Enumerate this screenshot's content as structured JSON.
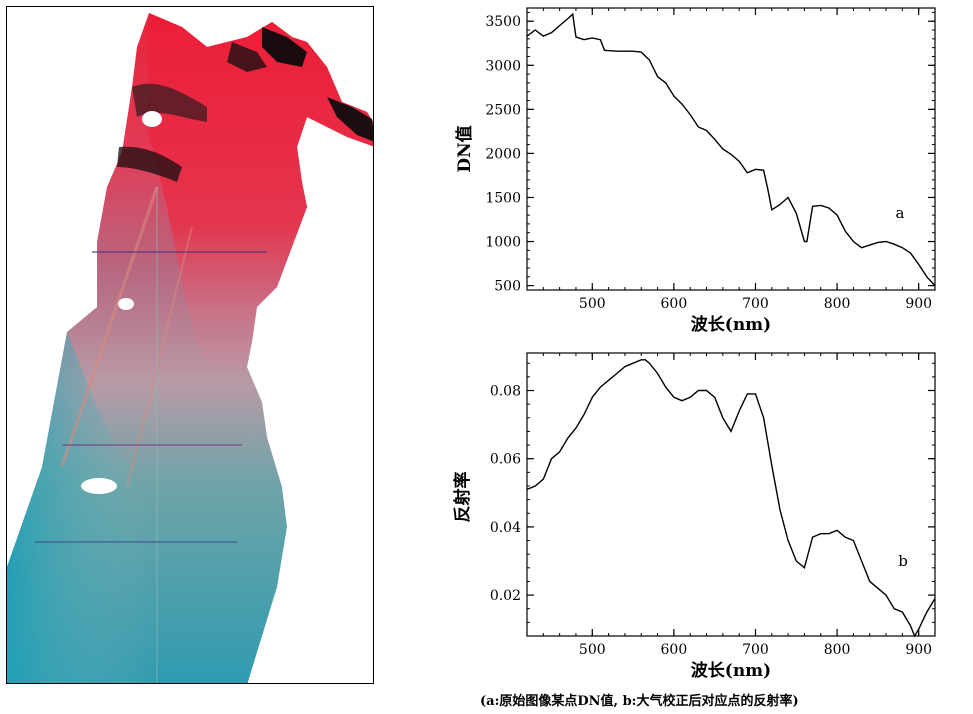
{
  "caption": "(a:原始图像某点DN值, b:大气校正后对应点的反射率)",
  "colors": {
    "axis": "#000000",
    "line": "#000000"
  },
  "chart_data": [
    {
      "type": "line",
      "panel_label": "a",
      "xlabel": "波长(nm)",
      "ylabel": "DN值",
      "xlim": [
        420,
        920
      ],
      "ylim": [
        450,
        3650
      ],
      "xticks": [
        500,
        600,
        700,
        800,
        900
      ],
      "yticks": [
        500,
        1000,
        1500,
        2000,
        2500,
        3000,
        3500
      ],
      "grid": false,
      "x": [
        420,
        430,
        440,
        450,
        460,
        470,
        476,
        480,
        490,
        500,
        510,
        515,
        530,
        550,
        560,
        570,
        580,
        590,
        600,
        610,
        620,
        630,
        640,
        650,
        660,
        670,
        680,
        690,
        700,
        710,
        715,
        720,
        730,
        740,
        750,
        760,
        763,
        770,
        780,
        790,
        800,
        810,
        820,
        830,
        840,
        850,
        860,
        870,
        880,
        890,
        900,
        910,
        920
      ],
      "y": [
        3330,
        3400,
        3330,
        3370,
        3450,
        3530,
        3580,
        3320,
        3290,
        3310,
        3290,
        3170,
        3160,
        3160,
        3150,
        3060,
        2870,
        2800,
        2650,
        2560,
        2440,
        2300,
        2260,
        2160,
        2050,
        1990,
        1910,
        1780,
        1820,
        1810,
        1600,
        1360,
        1420,
        1500,
        1320,
        1000,
        1000,
        1400,
        1410,
        1380,
        1300,
        1120,
        1000,
        930,
        960,
        990,
        1000,
        970,
        930,
        870,
        740,
        600,
        500
      ]
    },
    {
      "type": "line",
      "panel_label": "b",
      "xlabel": "波长(nm)",
      "ylabel": "反射率",
      "xlim": [
        420,
        920
      ],
      "ylim": [
        0.008,
        0.091
      ],
      "xticks": [
        500,
        600,
        700,
        800,
        900
      ],
      "yticks": [
        0.02,
        0.04,
        0.06,
        0.08
      ],
      "ytick_labels": [
        "0.02",
        "0.04",
        "0.06",
        "0.08"
      ],
      "grid": false,
      "x": [
        420,
        430,
        440,
        450,
        460,
        470,
        480,
        490,
        500,
        510,
        520,
        530,
        540,
        550,
        560,
        565,
        570,
        580,
        590,
        600,
        610,
        620,
        630,
        640,
        650,
        660,
        670,
        680,
        690,
        700,
        710,
        720,
        730,
        740,
        750,
        760,
        770,
        780,
        790,
        800,
        810,
        820,
        830,
        840,
        850,
        860,
        870,
        880,
        890,
        895,
        900,
        910,
        920
      ],
      "y": [
        0.051,
        0.052,
        0.054,
        0.06,
        0.062,
        0.066,
        0.069,
        0.073,
        0.078,
        0.081,
        0.083,
        0.085,
        0.087,
        0.088,
        0.089,
        0.089,
        0.088,
        0.085,
        0.081,
        0.078,
        0.077,
        0.078,
        0.08,
        0.08,
        0.078,
        0.072,
        0.068,
        0.074,
        0.079,
        0.079,
        0.072,
        0.058,
        0.045,
        0.036,
        0.03,
        0.028,
        0.037,
        0.038,
        0.038,
        0.039,
        0.037,
        0.036,
        0.03,
        0.024,
        0.022,
        0.02,
        0.016,
        0.015,
        0.011,
        0.008,
        0.01,
        0.015,
        0.019
      ]
    }
  ]
}
